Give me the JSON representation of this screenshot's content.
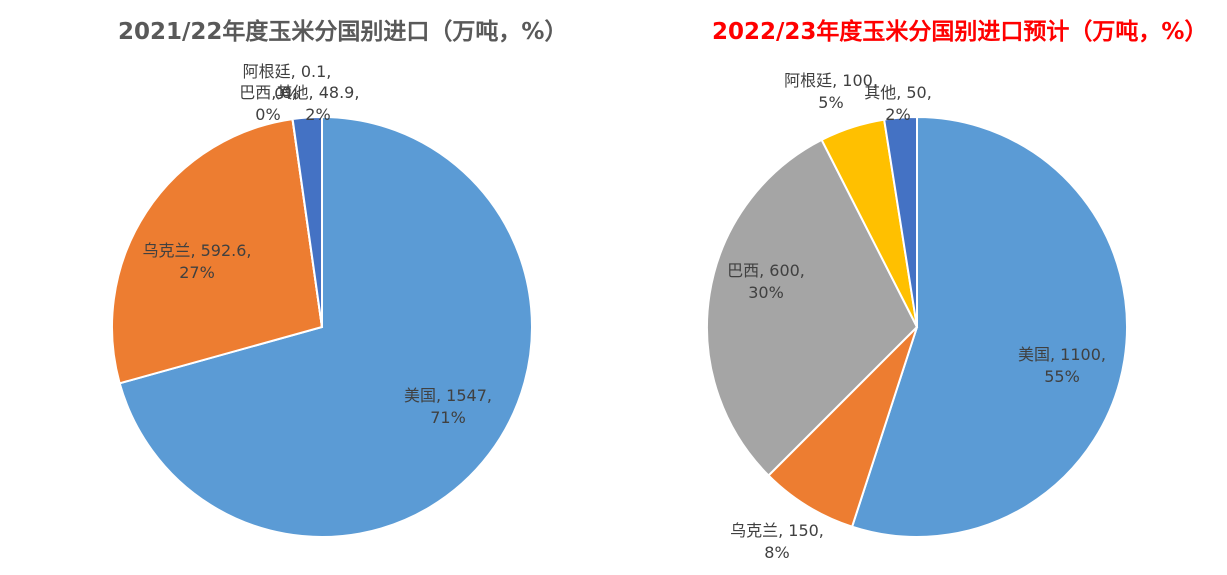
{
  "chart_data": [
    {
      "type": "pie",
      "title": "2021/22年度玉米分国别进口（万吨，%）",
      "title_color": "#595959",
      "slices": [
        {
          "name": "美国",
          "value": 1547,
          "value_text": "1547",
          "percent_text": "71%",
          "color": "#5b9bd5"
        },
        {
          "name": "乌克兰",
          "value": 592.6,
          "value_text": "592.6",
          "percent_text": "27%",
          "color": "#ed7d31"
        },
        {
          "name": "巴西",
          "value": 0.1,
          "value_text": "0",
          "percent_text": "0%",
          "color": "#a5a5a5"
        },
        {
          "name": "阿根廷",
          "value": 0.1,
          "value_text": "0.1",
          "percent_text": "0%",
          "color": "#ffc000"
        },
        {
          "name": "其他",
          "value": 48.9,
          "value_text": "48.9",
          "percent_text": "2%",
          "color": "#4472c4"
        }
      ]
    },
    {
      "type": "pie",
      "title": "2022/23年度玉米分国别进口预计（万吨，%）",
      "title_color": "#ff0000",
      "slices": [
        {
          "name": "美国",
          "value": 1100,
          "value_text": "1100",
          "percent_text": "55%",
          "color": "#5b9bd5"
        },
        {
          "name": "乌克兰",
          "value": 150,
          "value_text": "150",
          "percent_text": "8%",
          "color": "#ed7d31"
        },
        {
          "name": "巴西",
          "value": 600,
          "value_text": "600",
          "percent_text": "30%",
          "color": "#a5a5a5"
        },
        {
          "name": "阿根廷",
          "value": 100,
          "value_text": "100",
          "percent_text": "5%",
          "color": "#ffc000"
        },
        {
          "name": "其他",
          "value": 50,
          "value_text": "50",
          "percent_text": "2%",
          "color": "#4472c4"
        }
      ]
    }
  ]
}
